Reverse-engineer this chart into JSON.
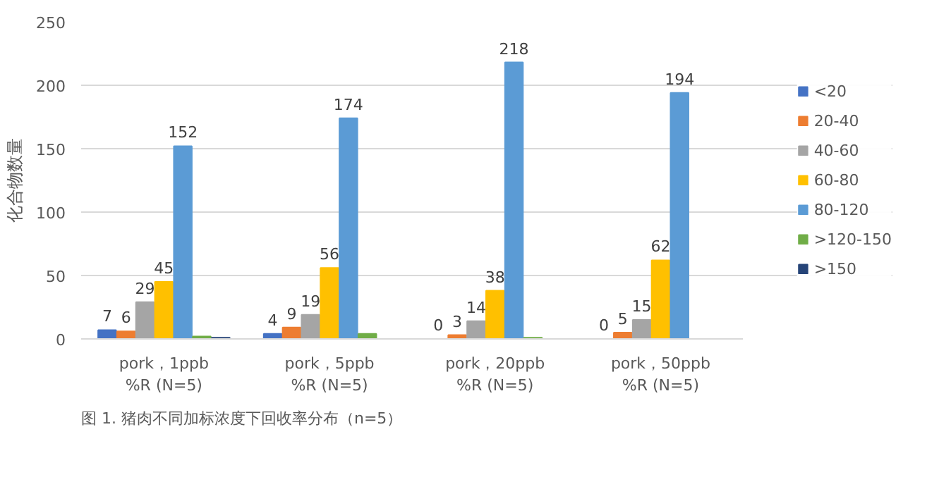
{
  "chart_data": {
    "type": "bar",
    "ylabel": "化合物数量",
    "categories": [
      "pork，1ppb\n%R (N=5)",
      "pork，5ppb\n%R (N=5)",
      "pork，20ppb\n%R (N=5)",
      "pork，50ppb\n%R (N=5)"
    ],
    "series": [
      {
        "name": "<20",
        "color": "#4472c4",
        "values": [
          7,
          4,
          0,
          0
        ],
        "value_labels": [
          "7",
          "4",
          "0",
          "0"
        ]
      },
      {
        "name": "20-40",
        "color": "#ed7d31",
        "values": [
          6,
          9,
          3,
          5
        ],
        "value_labels": [
          "6",
          "9",
          "3",
          "5"
        ]
      },
      {
        "name": "40-60",
        "color": "#a5a5a5",
        "values": [
          29,
          19,
          14,
          15
        ],
        "value_labels": [
          "29",
          "19",
          "14",
          "15"
        ]
      },
      {
        "name": "60-80",
        "color": "#ffc000",
        "values": [
          45,
          56,
          38,
          62
        ],
        "value_labels": [
          "45",
          "56",
          "38",
          "62"
        ]
      },
      {
        "name": "80-120",
        "color": "#5b9bd5",
        "values": [
          152,
          174,
          218,
          194
        ],
        "value_labels": [
          "152",
          "174",
          "218",
          "194"
        ]
      },
      {
        "name": ">120-150",
        "color": "#70ad47",
        "values": [
          2,
          4,
          1,
          0
        ],
        "value_labels": [
          null,
          null,
          null,
          null
        ]
      },
      {
        "name": ">150",
        "color": "#264478",
        "values": [
          1,
          0,
          0,
          0
        ],
        "value_labels": [
          null,
          null,
          null,
          null
        ]
      }
    ],
    "ylim": [
      0,
      250
    ],
    "yticks": [
      0,
      50,
      100,
      150,
      200,
      250
    ],
    "grid": "y",
    "legend": "right",
    "annotations": [
      "图 1. 猪肉不同加标浓度下回收率分布（n=5）"
    ]
  }
}
